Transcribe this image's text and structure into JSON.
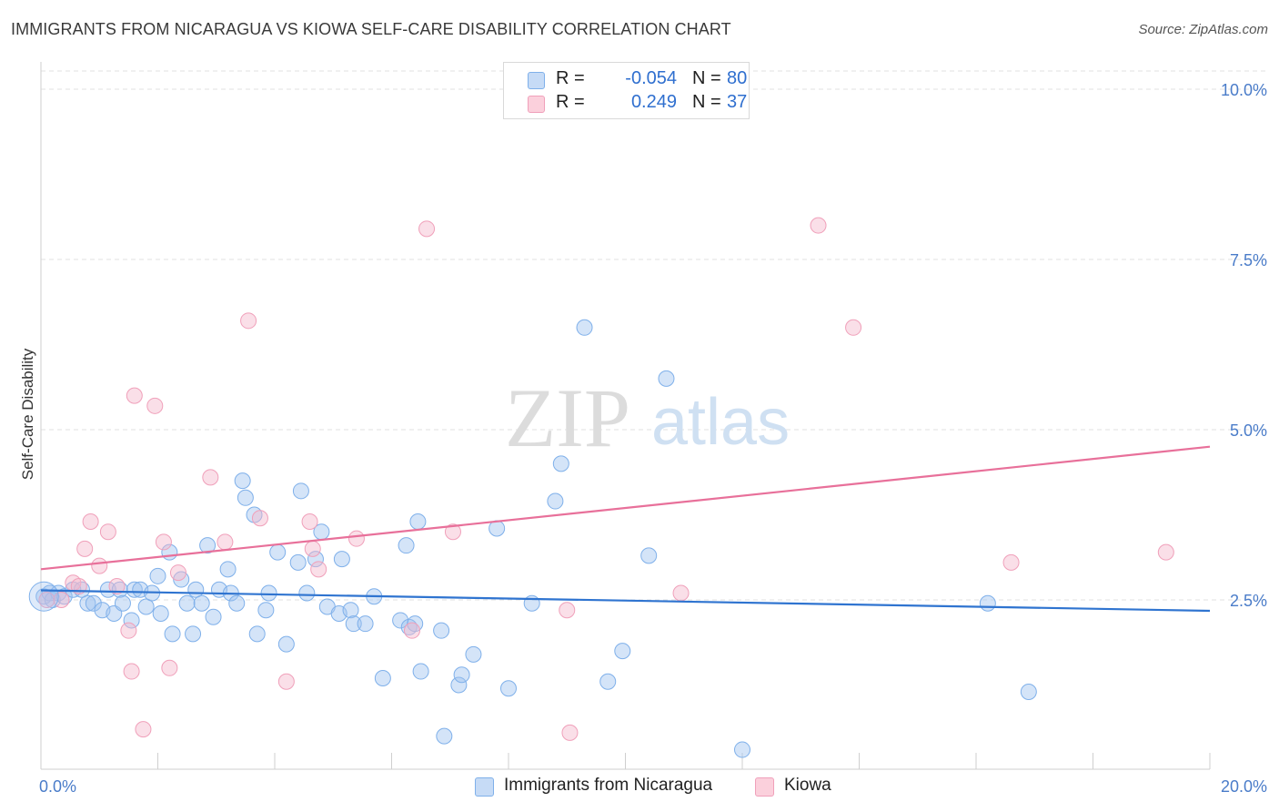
{
  "title": "IMMIGRANTS FROM NICARAGUA VS KIOWA SELF-CARE DISABILITY CORRELATION CHART",
  "source": "Source: ZipAtlas.com",
  "watermark": {
    "zip": "ZIP",
    "atlas": "atlas"
  },
  "legend": {
    "rows": [
      {
        "r_label": "R =",
        "r_value": "-0.054",
        "n_label": "N =",
        "n_value": "80",
        "color": "#a9c8f0"
      },
      {
        "r_label": "R =",
        "r_value": "0.249",
        "n_label": "N =",
        "n_value": "37",
        "color": "#f5b8cb"
      }
    ]
  },
  "bottom_legend": [
    {
      "label": "Immigrants from Nicaragua",
      "color": "#a9c8f0"
    },
    {
      "label": "Kiowa",
      "color": "#f5b8cb"
    }
  ],
  "chart_data": {
    "type": "scatter",
    "title": "IMMIGRANTS FROM NICARAGUA VS KIOWA SELF-CARE DISABILITY CORRELATION CHART",
    "xlabel": "",
    "ylabel": "Self-Care Disability",
    "xlim": [
      0,
      20
    ],
    "ylim": [
      0,
      10
    ],
    "x_ticks": [
      {
        "value": 0,
        "label": "0.0%"
      },
      {
        "value": 20,
        "label": "20.0%"
      }
    ],
    "y_ticks": [
      {
        "value": 2.5,
        "label": "2.5%"
      },
      {
        "value": 5.0,
        "label": "5.0%"
      },
      {
        "value": 7.5,
        "label": "7.5%"
      },
      {
        "value": 10.0,
        "label": "10.0%"
      }
    ],
    "grid": true,
    "series": [
      {
        "name": "Immigrants from Nicaragua",
        "color": "#7fb0ea",
        "line_color": "#2f74d0",
        "trend": {
          "x": [
            0,
            20
          ],
          "y": [
            2.64,
            2.34
          ]
        },
        "points": [
          [
            0.05,
            2.55
          ],
          [
            0.15,
            2.6
          ],
          [
            0.2,
            2.5
          ],
          [
            0.3,
            2.6
          ],
          [
            0.4,
            2.55
          ],
          [
            0.55,
            2.65
          ],
          [
            0.7,
            2.65
          ],
          [
            0.8,
            2.45
          ],
          [
            0.9,
            2.45
          ],
          [
            1.05,
            2.35
          ],
          [
            1.15,
            2.65
          ],
          [
            1.25,
            2.3
          ],
          [
            1.35,
            2.65
          ],
          [
            1.4,
            2.45
          ],
          [
            1.55,
            2.2
          ],
          [
            1.6,
            2.65
          ],
          [
            1.7,
            2.65
          ],
          [
            1.8,
            2.4
          ],
          [
            1.9,
            2.6
          ],
          [
            2.0,
            2.85
          ],
          [
            2.05,
            2.3
          ],
          [
            2.2,
            3.2
          ],
          [
            2.25,
            2.0
          ],
          [
            2.4,
            2.8
          ],
          [
            2.5,
            2.45
          ],
          [
            2.6,
            2.0
          ],
          [
            2.65,
            2.65
          ],
          [
            2.75,
            2.45
          ],
          [
            2.85,
            3.3
          ],
          [
            2.95,
            2.25
          ],
          [
            3.05,
            2.65
          ],
          [
            3.2,
            2.95
          ],
          [
            3.25,
            2.6
          ],
          [
            3.35,
            2.45
          ],
          [
            3.45,
            4.25
          ],
          [
            3.5,
            4.0
          ],
          [
            3.65,
            3.75
          ],
          [
            3.7,
            2.0
          ],
          [
            3.85,
            2.35
          ],
          [
            3.9,
            2.6
          ],
          [
            4.05,
            3.2
          ],
          [
            4.2,
            1.85
          ],
          [
            4.4,
            3.05
          ],
          [
            4.45,
            4.1
          ],
          [
            4.55,
            2.6
          ],
          [
            4.7,
            3.1
          ],
          [
            4.8,
            3.5
          ],
          [
            4.9,
            2.4
          ],
          [
            5.1,
            2.3
          ],
          [
            5.15,
            3.1
          ],
          [
            5.3,
            2.35
          ],
          [
            5.35,
            2.15
          ],
          [
            5.55,
            2.15
          ],
          [
            5.7,
            2.55
          ],
          [
            5.85,
            1.35
          ],
          [
            6.15,
            2.2
          ],
          [
            6.25,
            3.3
          ],
          [
            6.3,
            2.1
          ],
          [
            6.4,
            2.15
          ],
          [
            6.45,
            3.65
          ],
          [
            6.5,
            1.45
          ],
          [
            6.85,
            2.05
          ],
          [
            6.9,
            0.5
          ],
          [
            7.15,
            1.25
          ],
          [
            7.2,
            1.4
          ],
          [
            7.4,
            1.7
          ],
          [
            7.8,
            3.55
          ],
          [
            8.0,
            1.2
          ],
          [
            8.4,
            2.45
          ],
          [
            8.8,
            3.95
          ],
          [
            8.9,
            4.5
          ],
          [
            9.3,
            6.5
          ],
          [
            9.7,
            1.3
          ],
          [
            9.95,
            1.75
          ],
          [
            10.4,
            3.15
          ],
          [
            10.7,
            5.75
          ],
          [
            12.0,
            0.3
          ],
          [
            16.2,
            2.45
          ],
          [
            16.9,
            1.15
          ]
        ]
      },
      {
        "name": "Kiowa",
        "color": "#f0a0ba",
        "line_color": "#e8709a",
        "trend": {
          "x": [
            0,
            20
          ],
          "y": [
            2.95,
            4.75
          ]
        },
        "points": [
          [
            0.1,
            2.5
          ],
          [
            0.35,
            2.5
          ],
          [
            0.55,
            2.75
          ],
          [
            0.65,
            2.7
          ],
          [
            0.75,
            3.25
          ],
          [
            0.85,
            3.65
          ],
          [
            1.0,
            3.0
          ],
          [
            1.15,
            3.5
          ],
          [
            1.3,
            2.7
          ],
          [
            1.5,
            2.05
          ],
          [
            1.55,
            1.45
          ],
          [
            1.6,
            5.5
          ],
          [
            1.75,
            0.6
          ],
          [
            1.95,
            5.35
          ],
          [
            2.1,
            3.35
          ],
          [
            2.2,
            1.5
          ],
          [
            2.35,
            2.9
          ],
          [
            2.9,
            4.3
          ],
          [
            3.15,
            3.35
          ],
          [
            3.55,
            6.6
          ],
          [
            3.75,
            3.7
          ],
          [
            4.2,
            1.3
          ],
          [
            4.6,
            3.65
          ],
          [
            4.65,
            3.25
          ],
          [
            4.75,
            2.95
          ],
          [
            5.4,
            3.4
          ],
          [
            6.35,
            2.05
          ],
          [
            6.6,
            7.95
          ],
          [
            7.05,
            3.5
          ],
          [
            9.0,
            2.35
          ],
          [
            9.05,
            0.55
          ],
          [
            10.95,
            2.6
          ],
          [
            13.3,
            8.0
          ],
          [
            13.9,
            6.5
          ],
          [
            16.6,
            3.05
          ],
          [
            19.25,
            3.2
          ]
        ]
      }
    ]
  }
}
